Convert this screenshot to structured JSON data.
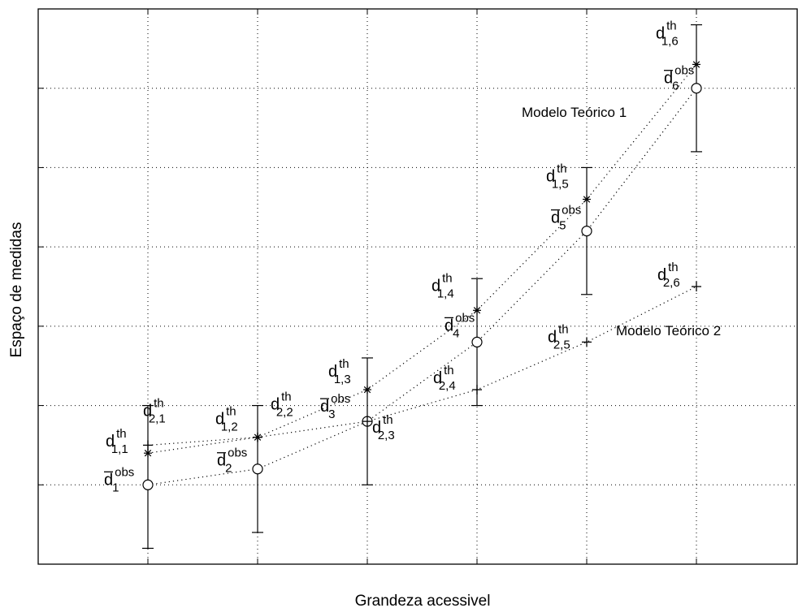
{
  "chart_data": {
    "type": "scatter",
    "xlabel": "Grandeza acessivel",
    "ylabel": "Espaço de medidas",
    "xlim": [
      0,
      7
    ],
    "ylim": [
      0,
      7
    ],
    "grid": true,
    "x": [
      1,
      2,
      3,
      4,
      5,
      6
    ],
    "observed": {
      "marker": "circle",
      "label_symbol": "d",
      "label_sup": "obs",
      "values": [
        1.0,
        1.2,
        1.8,
        2.8,
        4.2,
        6.0
      ],
      "error_low": [
        0.2,
        0.4,
        1.0,
        2.0,
        3.4,
        5.2
      ],
      "error_high": [
        2.0,
        2.0,
        2.6,
        3.6,
        5.0,
        6.8
      ],
      "labels": [
        {
          "sub": "1"
        },
        {
          "sub": "2"
        },
        {
          "sub": "3"
        },
        {
          "sub": "4"
        },
        {
          "sub": "5"
        },
        {
          "sub": "6"
        }
      ]
    },
    "series": [
      {
        "name": "Modelo Teórico 1",
        "marker": "star",
        "label_symbol": "d",
        "label_sup": "th",
        "values": [
          1.4,
          1.6,
          2.2,
          3.2,
          4.6,
          6.3
        ],
        "labels": [
          {
            "sub": "1,1"
          },
          {
            "sub": "1,2"
          },
          {
            "sub": "1,3"
          },
          {
            "sub": "1,4"
          },
          {
            "sub": "1,5"
          },
          {
            "sub": "1,6"
          }
        ]
      },
      {
        "name": "Modelo Teórico 2",
        "marker": "plus",
        "label_symbol": "d",
        "label_sup": "th",
        "values": [
          1.5,
          1.6,
          1.8,
          2.2,
          2.8,
          3.5
        ],
        "labels": [
          {
            "sub": "2,1"
          },
          {
            "sub": "2,2"
          },
          {
            "sub": "2,3"
          },
          {
            "sub": "2,4"
          },
          {
            "sub": "2,5"
          },
          {
            "sub": "2,6"
          }
        ]
      }
    ]
  }
}
